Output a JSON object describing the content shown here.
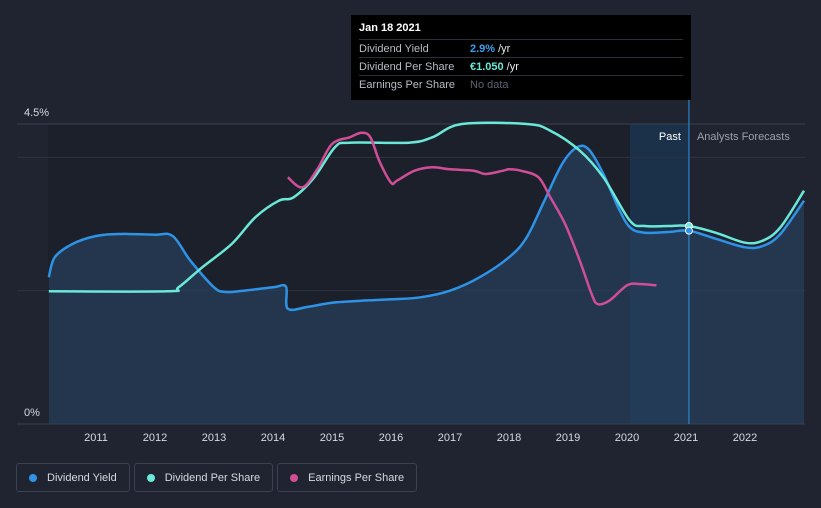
{
  "tooltip": {
    "date": "Jan 18 2021",
    "rows": [
      {
        "label": "Dividend Yield",
        "value": "2.9%",
        "unit": "/yr",
        "color": "#3aa0f0"
      },
      {
        "label": "Dividend Per Share",
        "value": "€1.050",
        "unit": "/yr",
        "color": "#6be8d8"
      },
      {
        "label": "Earnings Per Share",
        "value": "No data",
        "unit": "",
        "color": "#5c6270"
      }
    ]
  },
  "labels": {
    "past": "Past",
    "forecast": "Analysts Forecasts"
  },
  "legend": [
    {
      "label": "Dividend Yield",
      "color": "#2e93e6"
    },
    {
      "label": "Dividend Per Share",
      "color": "#6be8d8"
    },
    {
      "label": "Earnings Per Share",
      "color": "#d04e96"
    }
  ],
  "colors": {
    "yield": "#2e93e6",
    "dps": "#6be8d8",
    "eps": "#d04e96",
    "bg": "#1f2430",
    "past_band": "#1b202b",
    "forecast_band": "#173a5e",
    "area": "#26405c"
  },
  "chart_data": {
    "type": "line",
    "title": "",
    "x_ticks": [
      "2011",
      "2012",
      "2013",
      "2014",
      "2015",
      "2016",
      "2017",
      "2018",
      "2019",
      "2020",
      "2021",
      "2022"
    ],
    "xlim": [
      2010.2,
      2023.0
    ],
    "y_ticks": [
      "0%",
      "4.5%"
    ],
    "ylim": [
      0,
      4.5
    ],
    "marker_x": 2021.05,
    "past_band_start": 2020.05,
    "series": [
      {
        "name": "Dividend Yield",
        "unit": "%",
        "points": [
          [
            2010.2,
            2.2
          ],
          [
            2010.3,
            2.5
          ],
          [
            2010.6,
            2.7
          ],
          [
            2011.0,
            2.82
          ],
          [
            2011.4,
            2.85
          ],
          [
            2012.0,
            2.84
          ],
          [
            2012.3,
            2.82
          ],
          [
            2012.6,
            2.45
          ],
          [
            2013.0,
            2.05
          ],
          [
            2013.2,
            1.98
          ],
          [
            2013.5,
            2.0
          ],
          [
            2014.0,
            2.05
          ],
          [
            2014.22,
            2.06
          ],
          [
            2014.25,
            1.73
          ],
          [
            2014.6,
            1.76
          ],
          [
            2015.0,
            1.82
          ],
          [
            2015.5,
            1.85
          ],
          [
            2016.0,
            1.87
          ],
          [
            2016.5,
            1.9
          ],
          [
            2017.0,
            2.0
          ],
          [
            2017.5,
            2.2
          ],
          [
            2018.0,
            2.5
          ],
          [
            2018.3,
            2.8
          ],
          [
            2018.6,
            3.35
          ],
          [
            2018.9,
            3.9
          ],
          [
            2019.15,
            4.15
          ],
          [
            2019.35,
            4.12
          ],
          [
            2019.6,
            3.75
          ],
          [
            2019.85,
            3.25
          ],
          [
            2020.05,
            2.95
          ],
          [
            2020.3,
            2.87
          ],
          [
            2020.7,
            2.88
          ],
          [
            2021.05,
            2.9
          ],
          [
            2021.5,
            2.78
          ],
          [
            2022.0,
            2.65
          ],
          [
            2022.3,
            2.67
          ],
          [
            2022.6,
            2.85
          ],
          [
            2023.0,
            3.35
          ]
        ]
      },
      {
        "name": "Dividend Per Share",
        "unit": "%",
        "points": [
          [
            2010.2,
            1.99
          ],
          [
            2012.2,
            1.99
          ],
          [
            2012.4,
            2.05
          ],
          [
            2012.8,
            2.35
          ],
          [
            2013.3,
            2.7
          ],
          [
            2013.7,
            3.1
          ],
          [
            2014.1,
            3.35
          ],
          [
            2014.35,
            3.4
          ],
          [
            2014.7,
            3.7
          ],
          [
            2015.05,
            4.15
          ],
          [
            2015.3,
            4.22
          ],
          [
            2016.3,
            4.22
          ],
          [
            2016.7,
            4.3
          ],
          [
            2017.2,
            4.5
          ],
          [
            2018.3,
            4.5
          ],
          [
            2018.7,
            4.4
          ],
          [
            2019.2,
            4.1
          ],
          [
            2019.6,
            3.7
          ],
          [
            2020.05,
            3.05
          ],
          [
            2020.3,
            2.97
          ],
          [
            2020.7,
            2.97
          ],
          [
            2021.05,
            2.97
          ],
          [
            2021.5,
            2.87
          ],
          [
            2022.0,
            2.72
          ],
          [
            2022.3,
            2.75
          ],
          [
            2022.6,
            2.95
          ],
          [
            2023.0,
            3.5
          ]
        ]
      },
      {
        "name": "Earnings Per Share",
        "unit": "",
        "points": [
          [
            2014.25,
            3.7
          ],
          [
            2014.5,
            3.55
          ],
          [
            2014.75,
            3.82
          ],
          [
            2015.0,
            4.2
          ],
          [
            2015.3,
            4.3
          ],
          [
            2015.5,
            4.37
          ],
          [
            2015.65,
            4.3
          ],
          [
            2015.8,
            3.95
          ],
          [
            2016.0,
            3.62
          ],
          [
            2016.1,
            3.65
          ],
          [
            2016.4,
            3.8
          ],
          [
            2016.7,
            3.85
          ],
          [
            2017.0,
            3.82
          ],
          [
            2017.4,
            3.8
          ],
          [
            2017.6,
            3.75
          ],
          [
            2017.9,
            3.8
          ],
          [
            2018.0,
            3.82
          ],
          [
            2018.2,
            3.8
          ],
          [
            2018.5,
            3.7
          ],
          [
            2018.7,
            3.4
          ],
          [
            2018.95,
            3.0
          ],
          [
            2019.2,
            2.45
          ],
          [
            2019.4,
            1.95
          ],
          [
            2019.5,
            1.8
          ],
          [
            2019.7,
            1.85
          ],
          [
            2020.0,
            2.08
          ],
          [
            2020.2,
            2.1
          ],
          [
            2020.5,
            2.08
          ]
        ]
      }
    ]
  }
}
